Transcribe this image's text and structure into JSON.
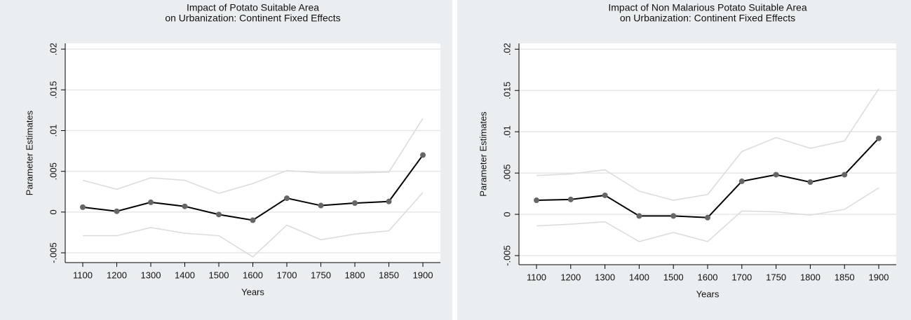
{
  "chart_data": [
    {
      "type": "line",
      "title": [
        "Impact of Potato Suitable Area",
        "on Urbanization: Continent Fixed Effects"
      ],
      "xlabel": "Years",
      "ylabel": "Parameter Estimates",
      "categories": [
        "1100",
        "1200",
        "1300",
        "1400",
        "1500",
        "1600",
        "1700",
        "1750",
        "1800",
        "1850",
        "1900"
      ],
      "ylim": [
        -0.0062,
        0.0207
      ],
      "yticks": [
        {
          "value": -0.005,
          "label": "-.005"
        },
        0,
        {
          "value": 0.005,
          "label": ".005"
        },
        {
          "value": 0.01,
          "label": ".01"
        },
        {
          "value": 0.015,
          "label": ".015"
        },
        {
          "value": 0.02,
          "label": ".02"
        }
      ],
      "grid": true,
      "series": [
        {
          "color": "#dcdcdc",
          "values": [
            0.0039,
            0.0028,
            0.0042,
            0.0039,
            0.0023,
            0.0035,
            0.0051,
            0.0048,
            0.0048,
            0.0049,
            0.0115
          ]
        },
        {
          "color": "#dcdcdc",
          "values": [
            -0.0029,
            -0.0029,
            -0.0019,
            -0.0026,
            -0.0029,
            -0.0055,
            -0.0016,
            -0.0034,
            -0.0027,
            -0.0023,
            0.0024
          ]
        },
        {
          "color": "#000000",
          "marker": "#666666",
          "values": [
            0.0006,
            0.0001,
            0.0012,
            0.0007,
            -0.0003,
            -0.001,
            0.0017,
            0.0008,
            0.0011,
            0.0013,
            0.007
          ]
        }
      ]
    },
    {
      "type": "line",
      "title": [
        "Impact of Non Malarious Potato Suitable Area",
        "on Urbanization: Continent Fixed Effects"
      ],
      "xlabel": "Years",
      "ylabel": "Parameter Estimates",
      "categories": [
        "1100",
        "1200",
        "1300",
        "1400",
        "1500",
        "1600",
        "1700",
        "1750",
        "1800",
        "1850",
        "1900"
      ],
      "ylim": [
        -0.0061,
        0.0207
      ],
      "yticks": [
        {
          "value": -0.005,
          "label": "-.005"
        },
        0,
        {
          "value": 0.005,
          "label": ".005"
        },
        {
          "value": 0.01,
          "label": ".01"
        },
        {
          "value": 0.015,
          "label": ".015"
        },
        {
          "value": 0.02,
          "label": ".02"
        }
      ],
      "grid": true,
      "series": [
        {
          "color": "#dcdcdc",
          "values": [
            0.0047,
            0.0049,
            0.0054,
            0.0028,
            0.0017,
            0.0024,
            0.0076,
            0.0093,
            0.008,
            0.0089,
            0.0152
          ]
        },
        {
          "color": "#dcdcdc",
          "values": [
            -0.0014,
            -0.0012,
            -0.0009,
            -0.0033,
            -0.0022,
            -0.0033,
            0.0004,
            0.0003,
            -0.0001,
            0.0006,
            0.0032
          ]
        },
        {
          "color": "#000000",
          "marker": "#666666",
          "values": [
            0.0017,
            0.0018,
            0.0023,
            -0.0002,
            -0.0002,
            -0.0004,
            0.004,
            0.0048,
            0.0039,
            0.0048,
            0.0092
          ]
        }
      ]
    }
  ]
}
